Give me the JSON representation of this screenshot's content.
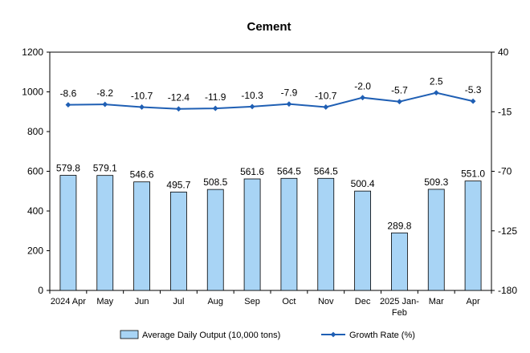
{
  "chart_data": {
    "type": "bar+line",
    "title": "Cement",
    "categories": [
      "2024 Apr",
      "May",
      "Jun",
      "Jul",
      "Aug",
      "Sep",
      "Oct",
      "Nov",
      "Dec",
      "2025 Jan-Feb",
      "Mar",
      "Apr"
    ],
    "category_lines": [
      [
        "2024 Apr"
      ],
      [
        "May"
      ],
      [
        "Jun"
      ],
      [
        "Jul"
      ],
      [
        "Aug"
      ],
      [
        "Sep"
      ],
      [
        "Oct"
      ],
      [
        "Nov"
      ],
      [
        "Dec"
      ],
      [
        "2025 Jan-",
        "Feb"
      ],
      [
        "Mar"
      ],
      [
        "Apr"
      ]
    ],
    "series": [
      {
        "name": "Average Daily Output (10,000 tons)",
        "type": "bar",
        "axis": "left",
        "values": [
          579.8,
          579.1,
          546.6,
          495.7,
          508.5,
          561.6,
          564.5,
          564.5,
          500.4,
          289.8,
          509.3,
          551.0
        ],
        "labels": [
          "579.8",
          "579.1",
          "546.6",
          "495.7",
          "508.5",
          "561.6",
          "564.5",
          "564.5",
          "500.4",
          "289.8",
          "509.3",
          "551.0"
        ],
        "color": "#a8d4f5",
        "edge": "#000000"
      },
      {
        "name": "Growth Rate (%)",
        "type": "line",
        "axis": "right",
        "values": [
          -8.6,
          -8.2,
          -10.7,
          -12.4,
          -11.9,
          -10.3,
          -7.9,
          -10.7,
          -2.0,
          -5.7,
          2.5,
          -5.3
        ],
        "labels": [
          "-8.6",
          "-8.2",
          "-10.7",
          "-12.4",
          "-11.9",
          "-10.3",
          "-7.9",
          "-10.7",
          "-2.0",
          "-5.7",
          "2.5",
          "-5.3"
        ],
        "color": "#1f5fb4"
      }
    ],
    "y_left": {
      "min": 0,
      "max": 1200,
      "ticks": [
        "0",
        "200",
        "400",
        "600",
        "800",
        "1000",
        "1200"
      ]
    },
    "y_right": {
      "min": -180,
      "max": 40,
      "ticks": [
        "-180",
        "-125",
        "-70",
        "-15",
        "40"
      ]
    },
    "grid": false,
    "legend_position": "bottom"
  }
}
